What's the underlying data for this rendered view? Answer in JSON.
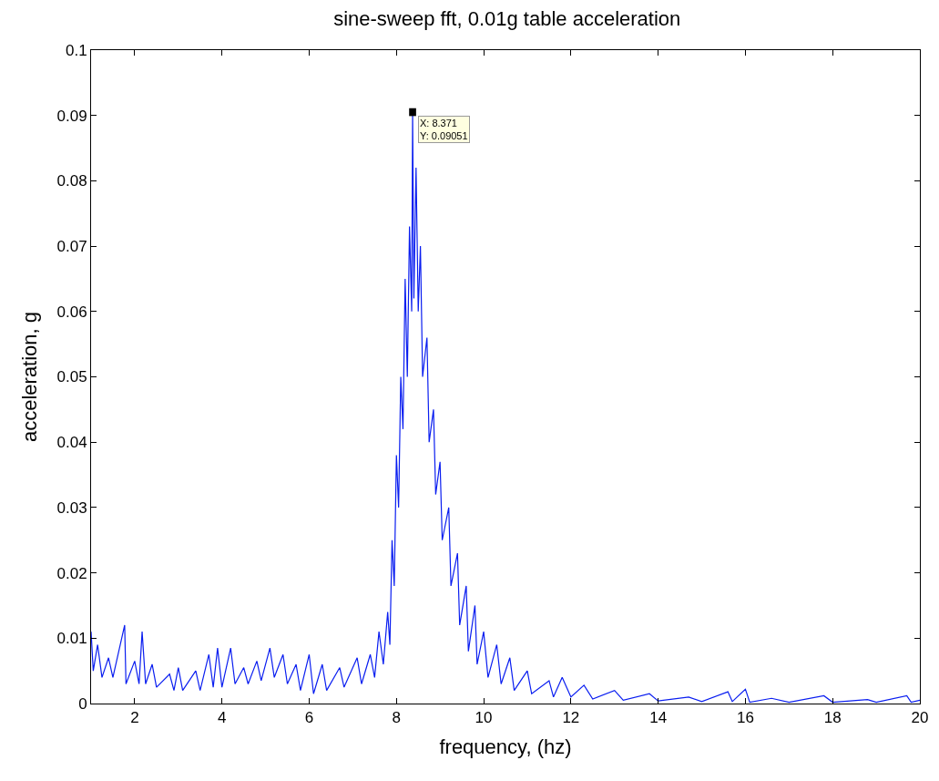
{
  "chart_data": {
    "type": "line",
    "title": "sine-sweep fft, 0.01g table acceleration",
    "xlabel": "frequency, (hz)",
    "ylabel": "acceleration, g",
    "xlim": [
      1,
      20
    ],
    "xticks": [
      2,
      4,
      6,
      8,
      10,
      12,
      14,
      16,
      18,
      20
    ],
    "ylim": [
      0,
      0.1
    ],
    "yticks": [
      0,
      0.01,
      0.02,
      0.03,
      0.04,
      0.05,
      0.06,
      0.07,
      0.08,
      0.09,
      0.1
    ],
    "marker": "none",
    "line_style": "solid",
    "annotations": [
      {
        "text": "X: 8.371\nY: 0.09051",
        "x": 8.371,
        "y": 0.09051
      }
    ],
    "series": [
      {
        "color": "#0a1ef0",
        "x": [
          1.0,
          1.05,
          1.15,
          1.25,
          1.4,
          1.5,
          1.77,
          1.8,
          2.0,
          2.1,
          2.17,
          2.25,
          2.4,
          2.5,
          2.8,
          2.9,
          3.0,
          3.1,
          3.4,
          3.5,
          3.7,
          3.8,
          3.9,
          4.0,
          4.2,
          4.3,
          4.5,
          4.6,
          4.8,
          4.9,
          5.1,
          5.2,
          5.4,
          5.5,
          5.7,
          5.8,
          6.0,
          6.1,
          6.3,
          6.4,
          6.7,
          6.8,
          7.1,
          7.2,
          7.4,
          7.5,
          7.6,
          7.7,
          7.8,
          7.85,
          7.9,
          7.95,
          8.0,
          8.05,
          8.1,
          8.15,
          8.2,
          8.25,
          8.3,
          8.35,
          8.371,
          8.4,
          8.45,
          8.5,
          8.55,
          8.6,
          8.7,
          8.75,
          8.85,
          8.9,
          9.0,
          9.05,
          9.2,
          9.25,
          9.4,
          9.45,
          9.6,
          9.65,
          9.8,
          9.85,
          10.0,
          10.1,
          10.3,
          10.4,
          10.6,
          10.7,
          11.0,
          11.1,
          11.5,
          11.6,
          11.8,
          12.0,
          12.3,
          12.5,
          13.0,
          13.2,
          13.8,
          14.0,
          14.7,
          15.0,
          15.6,
          15.7,
          16.0,
          16.1,
          16.6,
          17.0,
          17.8,
          18.0,
          18.8,
          19.0,
          19.7,
          19.8,
          20.0
        ],
        "values": [
          0.011,
          0.005,
          0.009,
          0.004,
          0.007,
          0.004,
          0.012,
          0.003,
          0.0065,
          0.003,
          0.011,
          0.003,
          0.006,
          0.0025,
          0.0045,
          0.002,
          0.0055,
          0.002,
          0.005,
          0.002,
          0.0075,
          0.0025,
          0.0085,
          0.0025,
          0.0085,
          0.003,
          0.0055,
          0.003,
          0.0065,
          0.0035,
          0.0085,
          0.004,
          0.0075,
          0.003,
          0.006,
          0.002,
          0.0075,
          0.0015,
          0.006,
          0.002,
          0.0055,
          0.0025,
          0.007,
          0.003,
          0.0075,
          0.004,
          0.011,
          0.006,
          0.014,
          0.009,
          0.025,
          0.018,
          0.038,
          0.03,
          0.05,
          0.042,
          0.065,
          0.05,
          0.073,
          0.06,
          0.09051,
          0.062,
          0.082,
          0.06,
          0.07,
          0.05,
          0.056,
          0.04,
          0.045,
          0.032,
          0.037,
          0.025,
          0.03,
          0.018,
          0.023,
          0.012,
          0.018,
          0.008,
          0.015,
          0.006,
          0.011,
          0.004,
          0.009,
          0.003,
          0.007,
          0.002,
          0.005,
          0.0015,
          0.0035,
          0.001,
          0.004,
          0.001,
          0.0028,
          0.0007,
          0.002,
          0.0005,
          0.0015,
          0.0004,
          0.001,
          0.0003,
          0.0018,
          0.0003,
          0.0022,
          0.0002,
          0.0008,
          0.0002,
          0.0012,
          0.0002,
          0.0006,
          0.0002,
          0.0012,
          0.0002,
          0.0005
        ]
      }
    ]
  }
}
